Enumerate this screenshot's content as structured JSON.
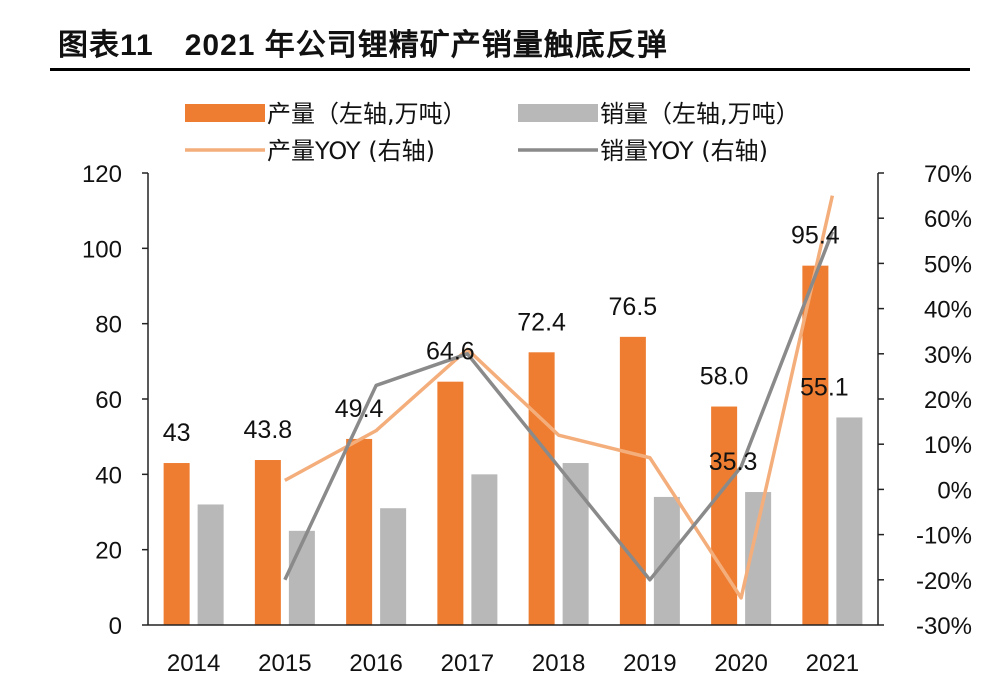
{
  "header": {
    "title": "图表11　2021 年公司锂精矿产销量触底反弹"
  },
  "colors": {
    "production": "#ee7d31",
    "sales": "#b8b8b8",
    "production_yoy": "#f4ae7c",
    "sales_yoy": "#8a8a8a"
  },
  "chart_data": {
    "type": "bar",
    "title": "2021 年公司锂精矿产销量触底反弹",
    "categories": [
      "2014",
      "2015",
      "2016",
      "2017",
      "2018",
      "2019",
      "2020",
      "2021"
    ],
    "ylim": [
      0,
      120
    ],
    "y_ticks": [
      "0",
      "20",
      "40",
      "60",
      "80",
      "100",
      "120"
    ],
    "y2lim": [
      -30,
      70
    ],
    "y2_ticks": [
      "-30%",
      "-20%",
      "-10%",
      "0%",
      "10%",
      "20%",
      "30%",
      "40%",
      "50%",
      "60%",
      "70%"
    ],
    "series": [
      {
        "name": "产量（左轴,万吨）",
        "type": "bar",
        "axis": "left",
        "values": [
          43,
          43.8,
          49.4,
          64.6,
          72.4,
          76.5,
          58.0,
          95.4
        ],
        "labels": [
          "43",
          "43.8",
          "49.4",
          "64.6",
          "72.4",
          "76.5",
          "58.0",
          "95.4"
        ]
      },
      {
        "name": "销量（左轴,万吨）",
        "type": "bar",
        "axis": "left",
        "values": [
          32,
          25,
          31,
          40,
          43,
          34,
          35.3,
          55.1
        ],
        "labels": [
          "",
          "",
          "",
          "",
          "",
          "",
          "35.3",
          "55.1"
        ]
      },
      {
        "name": "产量YOY (右轴)",
        "type": "line",
        "axis": "right",
        "values": [
          null,
          2,
          13,
          31,
          12,
          7,
          -24,
          65
        ]
      },
      {
        "name": "销量YOY (右轴)",
        "type": "line",
        "axis": "right",
        "values": [
          null,
          -20,
          23,
          30,
          5,
          -20,
          5,
          57
        ]
      }
    ],
    "legend_position": "top",
    "grid": false
  }
}
